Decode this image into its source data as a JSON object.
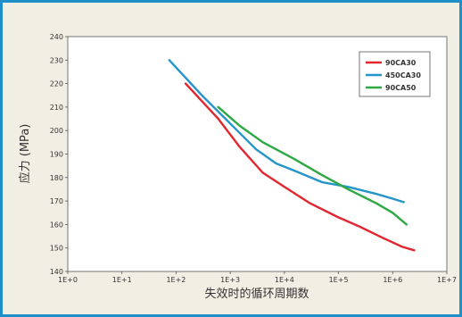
{
  "chart_data": {
    "type": "line",
    "xlabel": "失效时的循环周期数",
    "ylabel": "应力 (MPa)",
    "x_scale": "log",
    "x_ticks": [
      "1E+0",
      "1E+1",
      "1E+2",
      "1E+3",
      "1E+4",
      "1E+5",
      "1E+6",
      "1E+7"
    ],
    "y_ticks": [
      "140",
      "150",
      "160",
      "170",
      "180",
      "190",
      "200",
      "210",
      "220",
      "230",
      "240"
    ],
    "xlim": [
      1,
      10000000
    ],
    "ylim": [
      140,
      240
    ],
    "grid": false,
    "legend_position": "top-right",
    "series": [
      {
        "name": "90CA30",
        "color": "#e3262e",
        "points": [
          [
            150,
            220
          ],
          [
            600,
            205
          ],
          [
            1500,
            193
          ],
          [
            4000,
            182
          ],
          [
            10000,
            176
          ],
          [
            30000,
            169
          ],
          [
            100000,
            163
          ],
          [
            250000,
            159
          ],
          [
            700000,
            154
          ],
          [
            1500000,
            150.5
          ],
          [
            2500000,
            149
          ]
        ]
      },
      {
        "name": "450CA30",
        "color": "#2495c9",
        "points": [
          [
            75,
            230
          ],
          [
            300,
            215
          ],
          [
            1000,
            203
          ],
          [
            3000,
            192
          ],
          [
            7000,
            186
          ],
          [
            15000,
            183
          ],
          [
            50000,
            178
          ],
          [
            150000,
            176
          ],
          [
            500000,
            173
          ],
          [
            1000000,
            171
          ],
          [
            1600000,
            169.5
          ]
        ]
      },
      {
        "name": "90CA50",
        "color": "#2da843",
        "points": [
          [
            600,
            210
          ],
          [
            1500,
            202
          ],
          [
            4000,
            195
          ],
          [
            15000,
            188
          ],
          [
            50000,
            181
          ],
          [
            150000,
            175
          ],
          [
            500000,
            169
          ],
          [
            1000000,
            165
          ],
          [
            1800000,
            160
          ]
        ]
      }
    ]
  }
}
